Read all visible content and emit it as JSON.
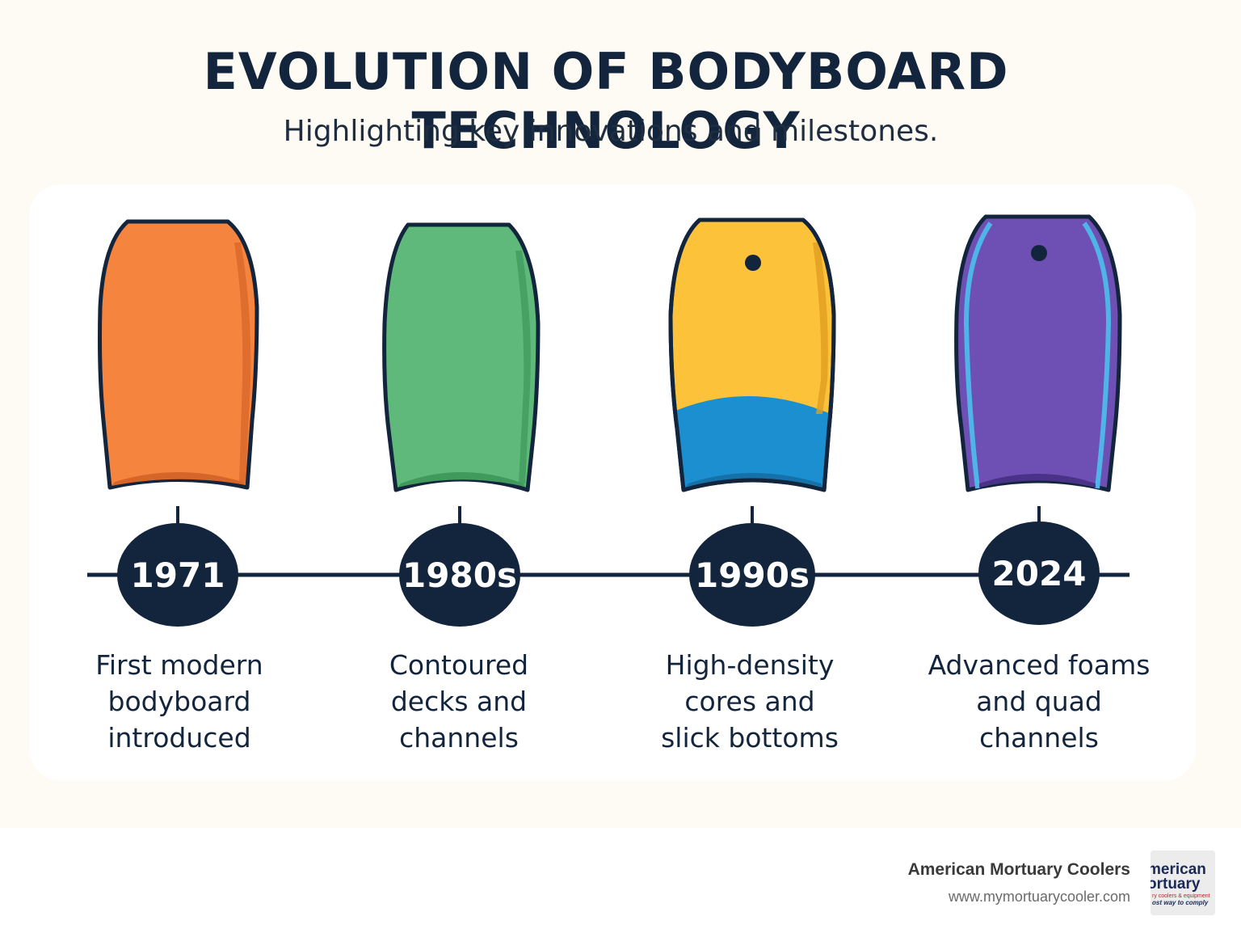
{
  "header": {
    "title": "EVOLUTION OF BODYBOARD TECHNOLOGY",
    "subtitle": "Highlighting key innovations and milestones."
  },
  "milestones": [
    {
      "year": "1971",
      "description_lines": [
        "First modern",
        "bodyboard",
        "introduced"
      ],
      "board_color": "#f5843f",
      "board_icon": "plain-orange-bodyboard-icon"
    },
    {
      "year": "1980s",
      "description_lines": [
        "Contoured",
        "decks and",
        "channels"
      ],
      "board_color": "#5eb97a",
      "board_icon": "contoured-green-bodyboard-icon"
    },
    {
      "year": "1990s",
      "description_lines": [
        "High-density",
        "cores and",
        "slick bottoms"
      ],
      "board_color": "#fcc23a",
      "board_icon": "yellow-blue-bodyboard-with-leash-plug-icon"
    },
    {
      "year": "2024",
      "description_lines": [
        "Advanced foams",
        "and quad",
        "channels"
      ],
      "board_color": "#6e4fb3",
      "board_icon": "purple-bodyboard-with-rails-and-leash-plug-icon"
    }
  ],
  "colors": {
    "navy": "#13253c",
    "background": "#fdfbf4",
    "panel": "#ffffff"
  },
  "footer": {
    "brand_name": "American Mortuary Coolers",
    "brand_url": "www.mymortuarycooler.com",
    "logo": {
      "line1": "merican",
      "line2": "ortuary",
      "line3": "ry coolers & equipment",
      "line4": "ost way to comply"
    }
  }
}
